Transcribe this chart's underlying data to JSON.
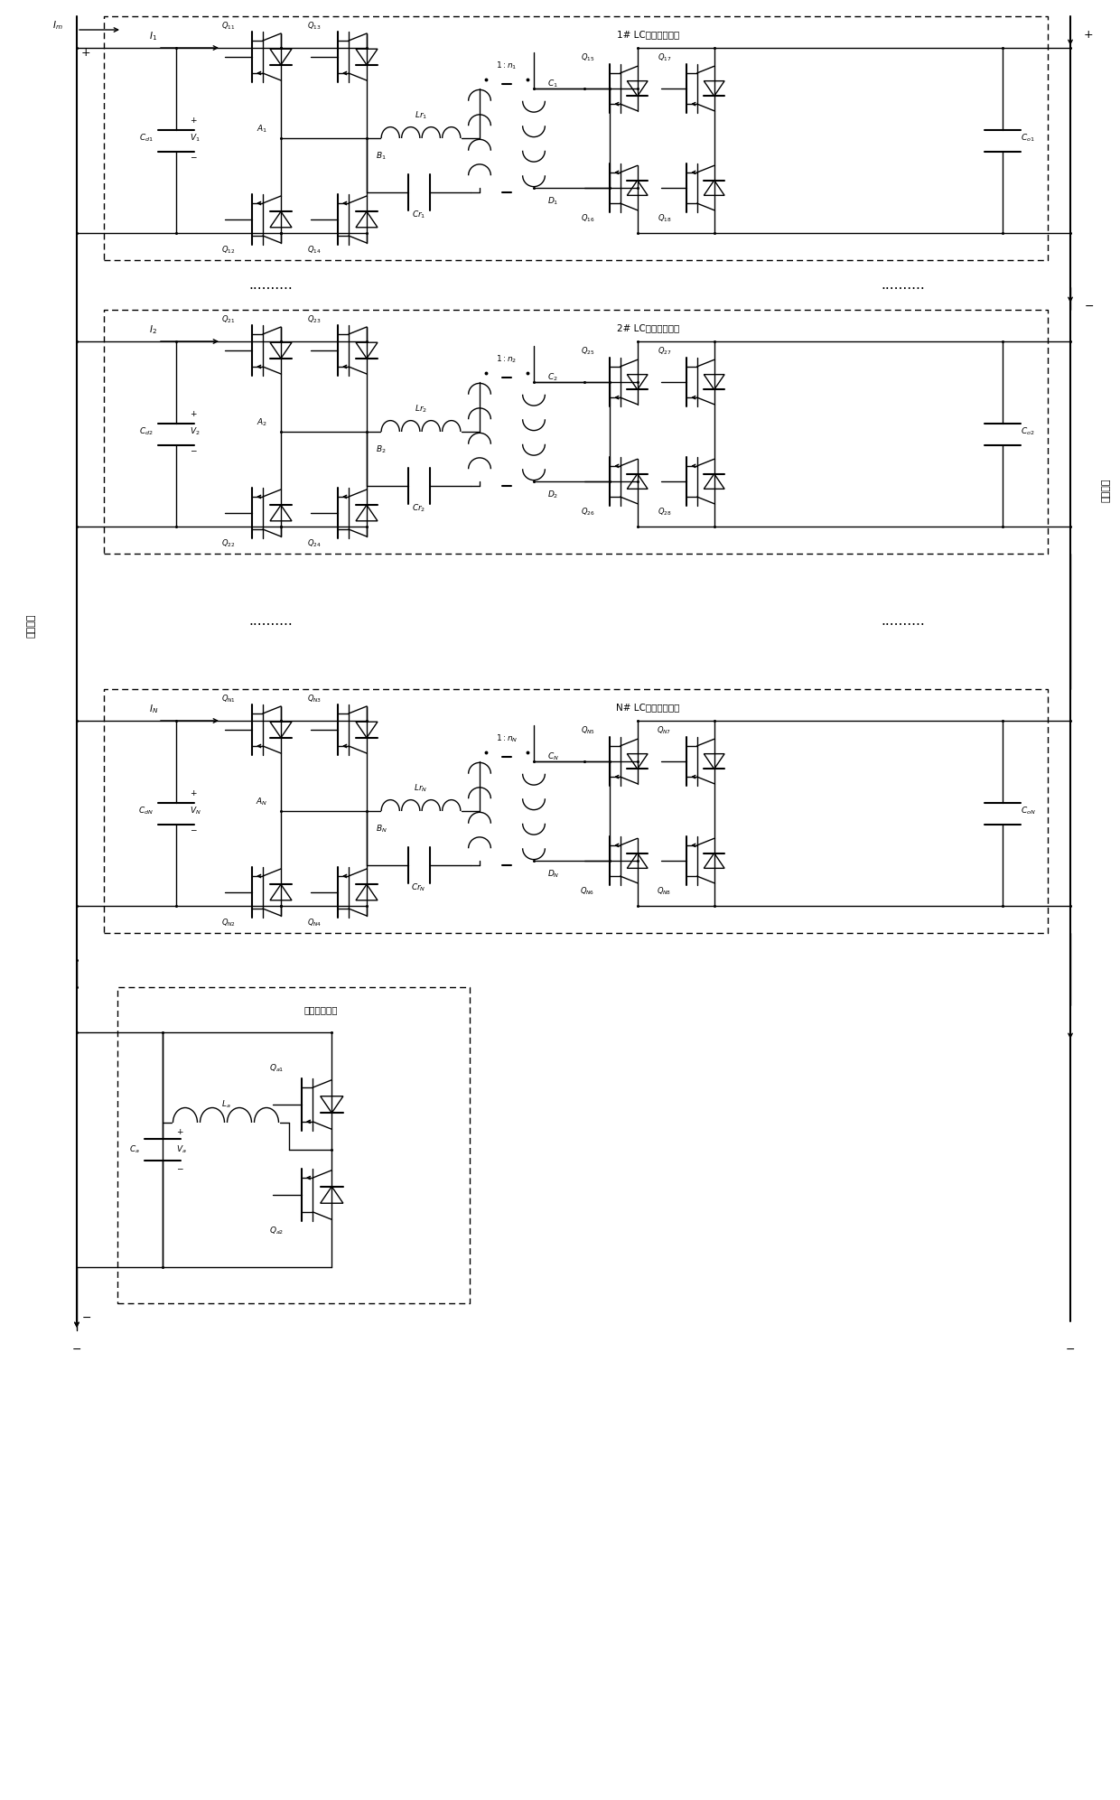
{
  "bg_color": "#ffffff",
  "line_color": "#000000",
  "module1_label": "1# LC串联谐振模块",
  "module2_label": "2# LC串联谐振模块",
  "moduleN_label": "N# LC串联谐振模块",
  "aux_label": "辅助桥臂模块",
  "left_label": "中压直流",
  "right_label": "低压直流"
}
